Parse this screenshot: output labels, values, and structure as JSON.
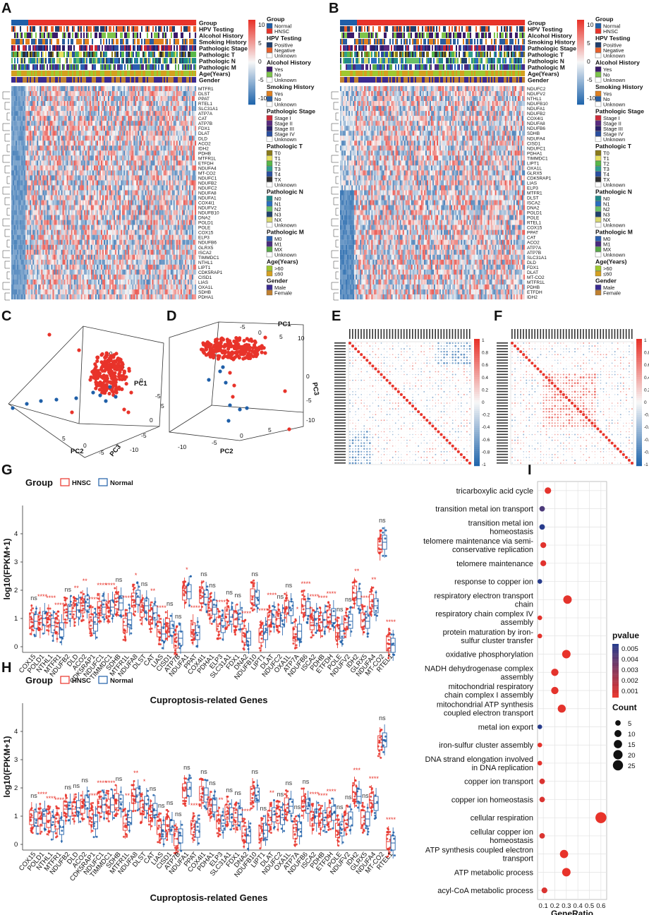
{
  "panels": {
    "A": "A",
    "B": "B",
    "C": "C",
    "D": "D",
    "E": "E",
    "F": "F",
    "G": "G",
    "H": "H",
    "I": "I"
  },
  "colors": {
    "hnsc": "#e8332a",
    "normal": "#1f5fa8",
    "heat_low": "#2166ac",
    "heat_mid": "#f7f7f7",
    "heat_high": "#e8332a"
  },
  "heatmap_A": {
    "annotation_rows": [
      "Group",
      "HPV Testing",
      "Alcohol History",
      "Smoking History",
      "Pathologic Stage",
      "Pathologic T",
      "Pathologic N",
      "Pathologic M",
      "Age(Years)",
      "Gender"
    ],
    "genes": [
      "MTFR1",
      "DLST",
      "PPAT",
      "RTEL1",
      "SLC31A1",
      "ATP7A",
      "CAT",
      "ATP7B",
      "FDX1",
      "DLAT",
      "DLD",
      "ACO2",
      "IDH2",
      "PDHB",
      "MTFR1L",
      "ETFDH",
      "NDUFA4",
      "MT-CO2",
      "NDUFC1",
      "NDUFB2",
      "NDUFC2",
      "NDUFA8",
      "NDUFA1",
      "COX4I1",
      "NDUFV2",
      "NDUFB10",
      "DNA2",
      "POLD1",
      "POLE",
      "COX15",
      "ELP3",
      "NDUFB6",
      "GLRX5",
      "ISCA2",
      "TIMMDC1",
      "NTHL1",
      "LIPT1",
      "CDK5RAP1",
      "CISD1",
      "LIAS",
      "OXA1L",
      "SDHB",
      "PDHA1"
    ],
    "scale_ticks": [
      "10",
      "5",
      "0",
      "-5",
      "-10"
    ]
  },
  "heatmap_B": {
    "annotation_rows": [
      "Group",
      "HPV Testing",
      "Alcohol History",
      "Smoking History",
      "Pathologic Stage",
      "Pathologic T",
      "Pathologic N",
      "Pathologic M",
      "Age(Years)",
      "Gender"
    ],
    "genes": [
      "NDUFC2",
      "NDUFV2",
      "NTHL1",
      "NDUFB10",
      "NDUFA1",
      "NDUFB2",
      "COX4I1",
      "NDUFA8",
      "NDUFB6",
      "SDHB",
      "NDUFA4",
      "CISD1",
      "NDUFC1",
      "PDHA1",
      "TIMMDC1",
      "LIPT1",
      "OXA1L",
      "GLRX5",
      "CDK5RAP1",
      "LIAS",
      "ELP3",
      "MTFR1",
      "DLST",
      "ISCA2",
      "DNA2",
      "POLD1",
      "POLE",
      "RTEL1",
      "COX15",
      "PPAT",
      "CAT",
      "ACO2",
      "ATP7A",
      "ATP7B",
      "SLC31A1",
      "DLD",
      "FDX1",
      "DLAT",
      "MT-CO2",
      "MTFR1L",
      "PDHB",
      "ETFDH",
      "IDH2"
    ],
    "scale_ticks": [
      "10",
      "5",
      "0",
      "-5",
      "-10"
    ]
  },
  "legend": [
    {
      "title": "Group",
      "items": [
        "Normal",
        "HNSC"
      ],
      "colors": [
        "#1f5fa8",
        "#e8332a"
      ]
    },
    {
      "title": "HPV Testing",
      "items": [
        "Positive",
        "Negative",
        "Unknown"
      ],
      "colors": [
        "#1f3f6e",
        "#e8602c",
        "#ffffff"
      ]
    },
    {
      "title": "Alcohol History",
      "items": [
        "Yes",
        "No",
        "Unknown"
      ],
      "colors": [
        "#3b1a6b",
        "#7ec44b",
        "#ffffff"
      ]
    },
    {
      "title": "Smoking History",
      "items": [
        "Yes",
        "No",
        "Unknown"
      ],
      "colors": [
        "#e0801f",
        "#2a5d9f",
        "#ffffff"
      ]
    },
    {
      "title": "Pathologic Stage",
      "items": [
        "Stage I",
        "Stage II",
        "Stage III",
        "Stage IV",
        "Unknown"
      ],
      "colors": [
        "#cc2a3a",
        "#5a2a80",
        "#2a1f6b",
        "#2a4fa0",
        "#ffffff"
      ]
    },
    {
      "title": "Pathologic T",
      "items": [
        "T0",
        "T1",
        "T2",
        "T3",
        "T4",
        "TX",
        "Unknown"
      ],
      "colors": [
        "#8a7a1a",
        "#e8e060",
        "#58b848",
        "#2f9f8f",
        "#2a4fa0",
        "#303030",
        "#ffffff"
      ]
    },
    {
      "title": "Pathologic N",
      "items": [
        "N0",
        "N1",
        "N2",
        "N3",
        "NX",
        "Unknown"
      ],
      "colors": [
        "#1f8a8a",
        "#2a6fc0",
        "#68c068",
        "#20406f",
        "#d8d870",
        "#ffffff"
      ]
    },
    {
      "title": "Pathologic M",
      "items": [
        "M0",
        "M1",
        "MX",
        "Unknown"
      ],
      "colors": [
        "#2a5fb0",
        "#4a2a80",
        "#58a848",
        "#ffffff"
      ]
    },
    {
      "title": "Age(Years)",
      "items": [
        ">60",
        "≤60"
      ],
      "colors": [
        "#a0c830",
        "#d4a020"
      ]
    },
    {
      "title": "Gender",
      "items": [
        "Male",
        "Female"
      ],
      "colors": [
        "#3a2a90",
        "#c08030"
      ]
    }
  ],
  "pca_C": {
    "axes": {
      "pc1": "PC1",
      "pc2": "PC2",
      "pc3": "PC3"
    },
    "ticks": [
      "10",
      "5",
      "0",
      "-5",
      "5",
      "0",
      "-5",
      "-10",
      "5",
      "0",
      "-5"
    ]
  },
  "pca_D": {
    "axes": {
      "pc1": "PC1",
      "pc2": "PC2",
      "pc3": "PC3"
    },
    "ticks": [
      "-5",
      "0",
      "5",
      "10",
      "0",
      "-5",
      "-10",
      "-10",
      "-5",
      "0",
      "5"
    ]
  },
  "corr_E": {
    "scale_ticks": [
      "1",
      "0.8",
      "0.6",
      "0.4",
      "0.2",
      "0",
      "-0.2",
      "-0.4",
      "-0.6",
      "-0.8",
      "-1"
    ]
  },
  "corr_F": {
    "scale_ticks": [
      "1",
      "0.8",
      "0.6",
      "0.4",
      "0.2",
      "0",
      "-0.2",
      "-0.4",
      "-0.6",
      "-0.8",
      "-1"
    ]
  },
  "boxplot_G": {
    "title": "Group",
    "legend": [
      "HNSC",
      "Normal"
    ],
    "ylabel": "log10(FPKM+1)",
    "xlabel": "Cuproptosis-related Genes",
    "yticks": [
      "0",
      "1",
      "2",
      "3",
      "4"
    ],
    "genes": [
      "COX15",
      "POLD1",
      "NTHL1",
      "MTFR1",
      "NDUFB2",
      "DLD",
      "ACO2",
      "CDK5RAP1",
      "NDUFC1",
      "TIMMDC1",
      "SDHB",
      "MTFR1L",
      "NDUFA8",
      "DLST",
      "CAT",
      "LIAS",
      "CISD1",
      "ATP7B",
      "NDUFA1",
      "PPAT",
      "COX4I1",
      "PDHA1",
      "ELP3",
      "SLC31A1",
      "FDX1",
      "DNA2",
      "NDUFB10",
      "LIPT1",
      "DLAT",
      "NDUFC2",
      "OXA1L",
      "ATP7A",
      "NDUFB6",
      "ISCA2",
      "PDHB",
      "ETFDH",
      "POLE",
      "NDUFV2",
      "IDH2",
      "GLRX5",
      "NDUFA4",
      "MT-CO2",
      "RTEL1"
    ],
    "hnsc_median": [
      0.95,
      0.85,
      0.95,
      0.7,
      1.2,
      1.25,
      1.45,
      0.9,
      1.35,
      1.35,
      1.6,
      0.75,
      1.65,
      1.3,
      1.05,
      0.6,
      0.75,
      0.2,
      1.9,
      0.6,
      1.8,
      1.35,
      0.8,
      1.15,
      0.95,
      0.4,
      1.8,
      0.4,
      0.95,
      1.0,
      1.4,
      0.45,
      1.45,
      0.85,
      0.85,
      1.05,
      0.5,
      0.85,
      1.9,
      0.95,
      1.6,
      3.6,
      0.1
    ],
    "normal_median": [
      0.9,
      1.0,
      0.75,
      0.6,
      1.25,
      1.3,
      1.55,
      0.8,
      1.4,
      1.4,
      1.55,
      0.95,
      1.75,
      1.45,
      1.2,
      0.45,
      0.65,
      0.3,
      1.95,
      0.5,
      1.75,
      1.4,
      0.75,
      1.05,
      1.05,
      0.3,
      1.75,
      0.5,
      1.05,
      0.95,
      1.35,
      0.55,
      1.35,
      1.0,
      0.95,
      1.1,
      0.55,
      0.9,
      1.7,
      0.9,
      1.45,
      3.7,
      0.05
    ],
    "sig": [
      "ns",
      "****",
      "****",
      "****",
      "ns",
      "**",
      "**",
      "****",
      "****",
      "****",
      "ns",
      "****",
      "*",
      "ns",
      "**",
      "****",
      "ns",
      "ns",
      "*",
      "****",
      "ns",
      "ns",
      "****",
      "ns",
      "ns",
      "****",
      "ns",
      "****",
      "****",
      "ns",
      "ns",
      "*",
      "****",
      "****",
      "****",
      "****",
      "ns",
      "ns",
      "**",
      "****",
      "**",
      "ns",
      "****"
    ]
  },
  "boxplot_H": {
    "title": "Group",
    "legend": [
      "HNSC",
      "Normal"
    ],
    "ylabel": "log10(FPKM+1)",
    "xlabel": "Cuproptosis-related Genes",
    "yticks": [
      "0",
      "1",
      "2",
      "3",
      "4"
    ],
    "genes": [
      "COX15",
      "POLD1",
      "NTHL1",
      "MTFR1",
      "NDUFB2",
      "DLD",
      "ACO2",
      "CDK5RAP1",
      "NDUFC1",
      "TIMMDC1",
      "SDHB",
      "MTFR1L",
      "NDUFA8",
      "DLST",
      "CAT",
      "LIAS",
      "CISD1",
      "ATP7B",
      "NDUFA1",
      "PPAT",
      "COX4I1",
      "PDHA1",
      "ELP3",
      "SLC31A1",
      "FDX1",
      "DNA2",
      "NDUFB10",
      "LIPT1",
      "DLAT",
      "NDUFC2",
      "OXA1L",
      "ATP7A",
      "NDUFB6",
      "ISCA2",
      "PDHB",
      "ETFDH",
      "POLE",
      "NDUFV2",
      "IDH2",
      "GLRX5",
      "NDUFA4",
      "MT-CO2",
      "RTEL1"
    ],
    "hnsc_median": [
      0.95,
      0.9,
      0.85,
      0.8,
      1.25,
      1.25,
      1.35,
      0.95,
      1.35,
      1.35,
      1.55,
      0.75,
      1.7,
      1.3,
      1.05,
      0.6,
      0.7,
      0.2,
      1.9,
      0.6,
      1.8,
      1.35,
      0.8,
      1.15,
      0.95,
      0.4,
      1.8,
      0.4,
      0.95,
      1.0,
      1.4,
      0.45,
      1.45,
      0.9,
      0.85,
      1.05,
      0.5,
      0.85,
      1.85,
      0.95,
      1.55,
      3.6,
      0.1
    ],
    "normal_median": [
      0.9,
      1.0,
      0.7,
      0.6,
      1.25,
      1.3,
      1.5,
      0.8,
      1.4,
      1.4,
      1.5,
      0.95,
      1.75,
      1.45,
      1.2,
      0.45,
      0.6,
      0.3,
      1.95,
      0.5,
      1.75,
      1.4,
      0.75,
      1.05,
      1.05,
      0.3,
      1.75,
      0.5,
      1.05,
      0.95,
      1.35,
      0.55,
      1.35,
      1.0,
      0.95,
      1.1,
      0.55,
      0.9,
      1.7,
      0.9,
      1.45,
      3.7,
      0.05
    ],
    "sig": [
      "ns",
      "****",
      "****",
      "****",
      "ns",
      "ns",
      "ns",
      "****",
      "****",
      "****",
      "ns",
      "**",
      "**",
      "*",
      "ns",
      "ns",
      "ns",
      "ns",
      "ns",
      "****",
      "ns",
      "ns",
      "**",
      "ns",
      "ns",
      "****",
      "ns",
      "ns",
      "**",
      "ns",
      "ns",
      "ns",
      "ns",
      "****",
      "****",
      "****",
      "ns",
      "ns",
      "***",
      "ns",
      "****",
      "ns",
      "****"
    ]
  },
  "chart_data": [
    {
      "type": "scatter",
      "title": "",
      "xlabel": "GeneRatio",
      "ylabel": "",
      "x_ticks": [
        "0.1",
        "0.2",
        "0.3",
        "0.4",
        "0.5",
        "0.6"
      ],
      "xlim": [
        0.05,
        0.65
      ],
      "categories": [
        "tricarboxylic acid cycle",
        "transition metal ion transport",
        "transition metal ion homeostasis",
        "telomere maintenance via semi-conservative replication",
        "telomere maintenance",
        "response to copper ion",
        "respiratory electron transport chain",
        "respiratory chain complex IV assembly",
        "protein maturation by iron-sulfur cluster transfer",
        "oxidative phosphorylation",
        "NADH dehydrogenase complex assembly",
        "mitochondrial respiratory chain complex I assembly",
        "mitochondrial ATP synthesis coupled electron transport",
        "metal ion export",
        "iron-sulfur cluster assembly",
        "DNA strand elongation involved in DNA replication",
        "copper ion transport",
        "copper ion homeostasis",
        "cellular respiration",
        "cellular copper ion homeostasis",
        "ATP synthesis coupled electron transport",
        "ATP metabolic process",
        "acyl-CoA metabolic process"
      ],
      "labels": [
        "tricarboxylic acid cycle",
        "transition metal ion transport",
        "transition metal ion\nhomeostasis",
        "telomere maintenance via semi-\nconservative replication",
        "telomere maintenance",
        "response to copper ion",
        "respiratory electron transport\nchain",
        "respiratory chain complex IV\nassembly",
        "protein maturation by iron-\nsulfur cluster transfer",
        "oxidative phosphorylation",
        "NADH dehydrogenase complex\nassembly",
        "mitochondrial respiratory\nchain complex I assembly",
        "mitochondrial ATP synthesis\ncoupled electron transport",
        "metal ion export",
        "iron-sulfur cluster assembly",
        "DNA strand elongation involved\nin DNA replication",
        "copper ion transport",
        "copper ion homeostasis",
        "cellular respiration",
        "cellular copper ion\nhomeostasis",
        "ATP synthesis coupled electron\ntransport",
        "ATP metabolic process",
        "acyl-CoA metabolic process"
      ],
      "gene_ratio": [
        0.14,
        0.09,
        0.09,
        0.1,
        0.1,
        0.07,
        0.31,
        0.07,
        0.07,
        0.3,
        0.2,
        0.2,
        0.26,
        0.07,
        0.07,
        0.07,
        0.09,
        0.09,
        0.6,
        0.09,
        0.28,
        0.3,
        0.11
      ],
      "count": [
        8,
        5,
        5,
        6,
        6,
        3,
        16,
        3,
        3,
        16,
        11,
        11,
        14,
        3,
        3,
        3,
        5,
        5,
        30,
        5,
        15,
        16,
        6
      ],
      "pvalue": [
        0.0003,
        0.0045,
        0.0055,
        0.0004,
        0.0004,
        0.0055,
        0.0003,
        0.0003,
        0.0003,
        0.0002,
        0.0003,
        0.0003,
        0.0003,
        0.0055,
        0.0003,
        0.0003,
        0.0006,
        0.0006,
        0.0002,
        0.0006,
        0.0002,
        0.0002,
        0.0006
      ],
      "legend_pvalue": {
        "title": "pvalue",
        "ticks": [
          "0.005",
          "0.004",
          "0.003",
          "0.002",
          "0.001"
        ]
      },
      "legend_count": {
        "title": "Count",
        "ticks": [
          "5",
          "10",
          "15",
          "20",
          "25"
        ]
      }
    }
  ]
}
